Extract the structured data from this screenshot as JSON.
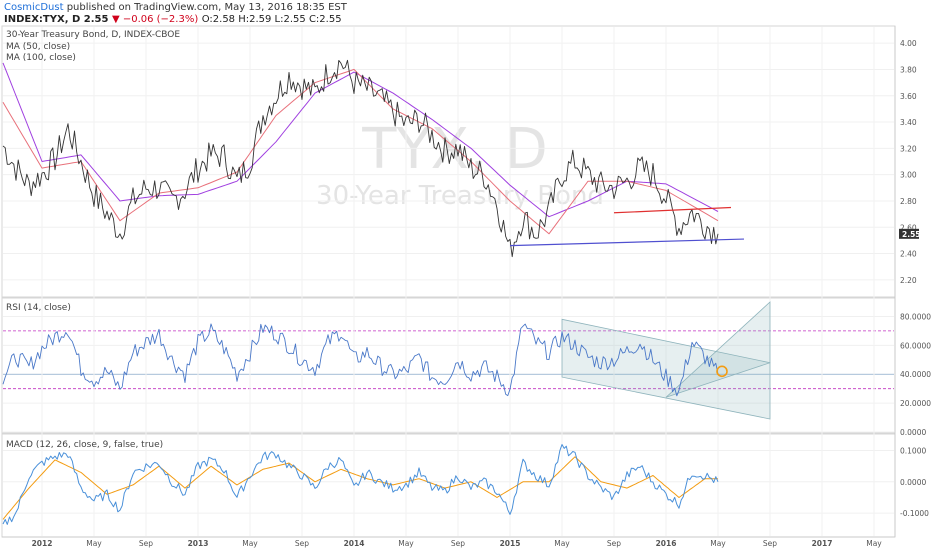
{
  "header": {
    "author": "CosmicDust",
    "published_text": "published on TradingView.com, May 13, 2016 18:35 EST",
    "symbol": "INDEX:TYX, D",
    "last": "2.55",
    "change": "▼ −0.06 (−2.3%)",
    "ohlc": "O:2.58  H:2.59  L:2.55  C:2.55"
  },
  "price_pane": {
    "title": "30-Year Treasury Bond, D, INDEX-CBOE",
    "ma50_label": "MA (50, close)",
    "ma100_label": "MA (100, close)",
    "watermark_symbol": "TYX, D",
    "watermark_name": "30-Year Treasury Bond",
    "last_price_tag": "2.55"
  },
  "rsi_pane": {
    "label": "RSI (14, close)"
  },
  "macd_pane": {
    "label": "MACD (12, 26, close, 9, false, true)"
  },
  "colors": {
    "price": "#333333",
    "ma50": "#e8707a",
    "ma100": "#a040e0",
    "rsi": "#4a78c8",
    "macd": "#4a90d9",
    "signal": "#f39c12",
    "channel": "#8fb4bc",
    "support": "#5050d0",
    "resistance": "#e03030",
    "rsi_band": "#c030c0"
  },
  "chart_data": [
    {
      "type": "line",
      "title": "30-Year Treasury Bond, D, INDEX-CBOE",
      "x_ticks": [
        "2012",
        "May",
        "Sep",
        "2013",
        "May",
        "Sep",
        "2014",
        "May",
        "Sep",
        "2015",
        "May",
        "Sep",
        "2016",
        "May",
        "Sep",
        "2017",
        "May"
      ],
      "y_ticks": [
        "4.00",
        "3.80",
        "3.60",
        "3.40",
        "3.20",
        "3.00",
        "2.80",
        "2.60",
        "2.40",
        "2.20"
      ],
      "ylim": [
        2.1,
        4.1
      ],
      "series": [
        {
          "name": "30-Year Treasury Bond",
          "dates": [
            "2011-10",
            "2011-11",
            "2011-12",
            "2012-01",
            "2012-02",
            "2012-03",
            "2012-04",
            "2012-05",
            "2012-06",
            "2012-07",
            "2012-08",
            "2012-09",
            "2012-10",
            "2012-11",
            "2012-12",
            "2013-01",
            "2013-02",
            "2013-03",
            "2013-04",
            "2013-05",
            "2013-06",
            "2013-07",
            "2013-08",
            "2013-09",
            "2013-10",
            "2013-11",
            "2013-12",
            "2014-01",
            "2014-02",
            "2014-03",
            "2014-04",
            "2014-05",
            "2014-06",
            "2014-07",
            "2014-08",
            "2014-09",
            "2014-10",
            "2014-11",
            "2014-12",
            "2015-01",
            "2015-02",
            "2015-03",
            "2015-04",
            "2015-05",
            "2015-06",
            "2015-07",
            "2015-08",
            "2015-09",
            "2015-10",
            "2015-11",
            "2015-12",
            "2016-01",
            "2016-02",
            "2016-03",
            "2016-04",
            "2016-05"
          ],
          "values": [
            3.22,
            3.05,
            2.92,
            3.0,
            3.12,
            3.35,
            3.1,
            2.85,
            2.7,
            2.56,
            2.8,
            2.9,
            2.9,
            2.8,
            2.88,
            3.05,
            3.15,
            3.14,
            2.95,
            3.1,
            3.45,
            3.6,
            3.75,
            3.68,
            3.62,
            3.78,
            3.86,
            3.7,
            3.65,
            3.58,
            3.48,
            3.38,
            3.42,
            3.3,
            3.18,
            3.2,
            3.05,
            3.0,
            2.78,
            2.42,
            2.68,
            2.55,
            2.72,
            3.0,
            3.1,
            3.0,
            2.92,
            2.9,
            2.95,
            3.05,
            3.0,
            2.82,
            2.6,
            2.72,
            2.62,
            2.55
          ]
        },
        {
          "name": "MA (50, close)",
          "dates": [
            "2011-10",
            "2012-01",
            "2012-04",
            "2012-07",
            "2012-10",
            "2013-01",
            "2013-04",
            "2013-07",
            "2013-10",
            "2014-01",
            "2014-04",
            "2014-07",
            "2014-10",
            "2015-01",
            "2015-04",
            "2015-07",
            "2015-10",
            "2016-01",
            "2016-05"
          ],
          "values": [
            3.55,
            3.05,
            3.1,
            2.65,
            2.86,
            2.9,
            3.02,
            3.45,
            3.7,
            3.8,
            3.5,
            3.35,
            3.1,
            2.8,
            2.55,
            2.95,
            2.95,
            2.88,
            2.65
          ]
        },
        {
          "name": "MA (100, close)",
          "dates": [
            "2011-10",
            "2012-01",
            "2012-04",
            "2012-07",
            "2012-10",
            "2013-01",
            "2013-04",
            "2013-07",
            "2013-10",
            "2014-01",
            "2014-04",
            "2014-07",
            "2014-10",
            "2015-01",
            "2015-04",
            "2015-07",
            "2015-10",
            "2016-01",
            "2016-05"
          ],
          "values": [
            3.85,
            3.1,
            3.15,
            2.8,
            2.84,
            2.85,
            2.95,
            3.25,
            3.62,
            3.78,
            3.62,
            3.42,
            3.2,
            2.92,
            2.68,
            2.8,
            2.95,
            2.93,
            2.72
          ]
        }
      ],
      "trendlines": [
        {
          "name": "support",
          "from": [
            "2015-01",
            2.46
          ],
          "to": [
            "2016-07",
            2.51
          ]
        },
        {
          "name": "resistance",
          "from": [
            "2015-09",
            2.71
          ],
          "to": [
            "2016-06",
            2.75
          ]
        }
      ],
      "last_price": 2.55
    },
    {
      "type": "line",
      "title": "RSI (14, close)",
      "y_ticks": [
        "80.0000",
        "60.0000",
        "40.0000",
        "20.0000",
        "0.0000"
      ],
      "ylim": [
        0,
        90
      ],
      "bands": [
        70,
        30
      ],
      "series": [
        {
          "name": "RSI (14, close)",
          "dates": [
            "2011-10",
            "2011-11",
            "2011-12",
            "2012-01",
            "2012-02",
            "2012-03",
            "2012-04",
            "2012-05",
            "2012-06",
            "2012-07",
            "2012-08",
            "2012-09",
            "2012-10",
            "2012-11",
            "2012-12",
            "2013-01",
            "2013-02",
            "2013-03",
            "2013-04",
            "2013-05",
            "2013-06",
            "2013-07",
            "2013-08",
            "2013-09",
            "2013-10",
            "2013-11",
            "2013-12",
            "2014-01",
            "2014-02",
            "2014-03",
            "2014-04",
            "2014-05",
            "2014-06",
            "2014-07",
            "2014-08",
            "2014-09",
            "2014-10",
            "2014-11",
            "2014-12",
            "2015-01",
            "2015-02",
            "2015-03",
            "2015-04",
            "2015-05",
            "2015-06",
            "2015-07",
            "2015-08",
            "2015-09",
            "2015-10",
            "2015-11",
            "2015-12",
            "2016-01",
            "2016-02",
            "2016-03",
            "2016-04",
            "2016-05"
          ],
          "values": [
            38,
            52,
            45,
            58,
            66,
            72,
            44,
            36,
            42,
            30,
            55,
            62,
            68,
            50,
            40,
            62,
            70,
            58,
            40,
            55,
            72,
            68,
            60,
            50,
            44,
            62,
            70,
            50,
            55,
            46,
            40,
            42,
            52,
            38,
            36,
            50,
            40,
            45,
            38,
            28,
            75,
            62,
            55,
            66,
            60,
            52,
            48,
            50,
            56,
            62,
            50,
            38,
            28,
            62,
            52,
            40
          ]
        }
      ],
      "channel": {
        "top": [
          [
            "2015-05",
            78
          ],
          [
            "2016-09",
            48
          ]
        ],
        "bottom": [
          [
            "2015-05",
            38
          ],
          [
            "2016-09",
            9
          ]
        ]
      },
      "wedge": {
        "apex": [
          "2016-01",
          24
        ],
        "top": [
          "2016-09",
          90
        ],
        "bottom": [
          "2016-09",
          48
        ]
      }
    },
    {
      "type": "line",
      "title": "MACD (12, 26, close, 9, false, true)",
      "y_ticks": [
        "0.1000",
        "0.0000",
        "-0.1000"
      ],
      "ylim": [
        -0.17,
        0.14
      ],
      "series": [
        {
          "name": "MACD",
          "dates": [
            "2011-10",
            "2011-11",
            "2011-12",
            "2012-01",
            "2012-02",
            "2012-03",
            "2012-04",
            "2012-05",
            "2012-06",
            "2012-07",
            "2012-08",
            "2012-09",
            "2012-10",
            "2012-11",
            "2012-12",
            "2013-01",
            "2013-02",
            "2013-03",
            "2013-04",
            "2013-05",
            "2013-06",
            "2013-07",
            "2013-08",
            "2013-09",
            "2013-10",
            "2013-11",
            "2013-12",
            "2014-01",
            "2014-02",
            "2014-03",
            "2014-04",
            "2014-05",
            "2014-06",
            "2014-07",
            "2014-08",
            "2014-09",
            "2014-10",
            "2014-11",
            "2014-12",
            "2015-01",
            "2015-02",
            "2015-03",
            "2015-04",
            "2015-05",
            "2015-06",
            "2015-07",
            "2015-08",
            "2015-09",
            "2015-10",
            "2015-11",
            "2015-12",
            "2016-01",
            "2016-02",
            "2016-03",
            "2016-04",
            "2016-05"
          ],
          "values": [
            -0.14,
            -0.1,
            0.02,
            0.06,
            0.08,
            0.09,
            -0.02,
            -0.06,
            -0.04,
            -0.09,
            0.03,
            0.05,
            0.06,
            0.0,
            -0.04,
            0.05,
            0.07,
            0.04,
            -0.05,
            0.02,
            0.08,
            0.09,
            0.05,
            0.02,
            -0.02,
            0.05,
            0.07,
            -0.02,
            0.03,
            0.0,
            -0.02,
            -0.01,
            0.03,
            -0.02,
            -0.03,
            0.02,
            -0.02,
            0.0,
            -0.03,
            -0.1,
            0.06,
            0.02,
            -0.01,
            0.11,
            0.08,
            0.02,
            -0.02,
            -0.05,
            0.02,
            0.05,
            0.0,
            -0.04,
            -0.07,
            0.03,
            0.02,
            0.0
          ]
        },
        {
          "name": "Signal",
          "dates": [
            "2011-10",
            "2011-12",
            "2012-02",
            "2012-04",
            "2012-06",
            "2012-08",
            "2012-10",
            "2012-12",
            "2013-02",
            "2013-04",
            "2013-06",
            "2013-08",
            "2013-10",
            "2013-12",
            "2014-02",
            "2014-04",
            "2014-06",
            "2014-08",
            "2014-10",
            "2014-12",
            "2015-02",
            "2015-04",
            "2015-06",
            "2015-08",
            "2015-10",
            "2015-12",
            "2016-02",
            "2016-04",
            "2016-05"
          ],
          "values": [
            -0.12,
            -0.02,
            0.07,
            0.03,
            -0.04,
            -0.01,
            0.05,
            -0.02,
            0.05,
            -0.01,
            0.04,
            0.06,
            0.0,
            0.04,
            0.01,
            -0.01,
            0.01,
            -0.02,
            0.0,
            -0.05,
            0.0,
            0.0,
            0.08,
            0.0,
            -0.02,
            0.02,
            -0.05,
            0.01,
            0.01
          ]
        }
      ]
    }
  ]
}
